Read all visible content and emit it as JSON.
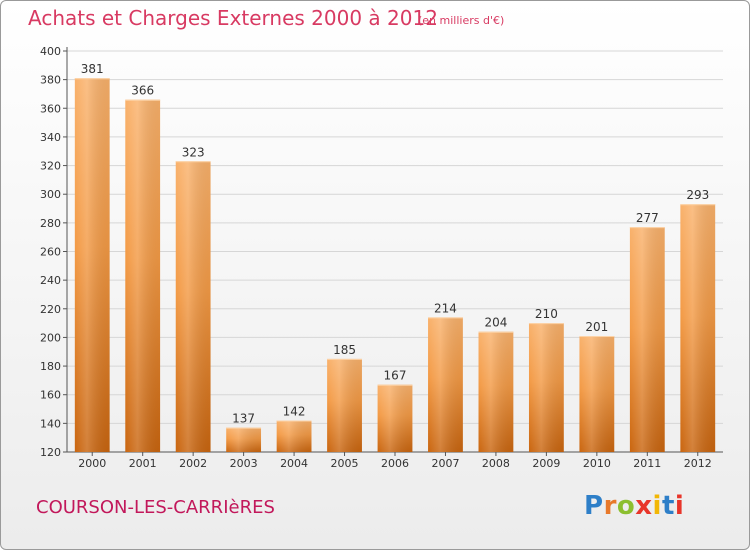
{
  "title": "Achats et Charges Externes 2000 à 2012",
  "unit_note": "(en milliers d'€)",
  "commune": "COURSON-LES-CARRIèRES",
  "logo": {
    "text": "Proxiti",
    "letter_colors": [
      "#2e7fc8",
      "#e8792a",
      "#8cbf2f",
      "#e8352a",
      "#f2b705",
      "#2e7fc8",
      "#e8352a"
    ]
  },
  "colors": {
    "bar_top": "#f9b16b",
    "bar_mid": "#f39a45",
    "bar_bottom": "#c9650f",
    "grid": "#d6d6d6",
    "title": "#d83a62"
  },
  "chart_data": {
    "type": "bar",
    "categories": [
      "2000",
      "2001",
      "2002",
      "2003",
      "2004",
      "2005",
      "2006",
      "2007",
      "2008",
      "2009",
      "2010",
      "2011",
      "2012"
    ],
    "values": [
      381,
      366,
      323,
      137,
      142,
      185,
      167,
      214,
      204,
      210,
      201,
      277,
      293
    ],
    "ylim": [
      120,
      400
    ],
    "yticks": [
      120,
      140,
      160,
      180,
      200,
      220,
      240,
      260,
      280,
      300,
      320,
      340,
      360,
      380,
      400
    ],
    "grid": true
  }
}
